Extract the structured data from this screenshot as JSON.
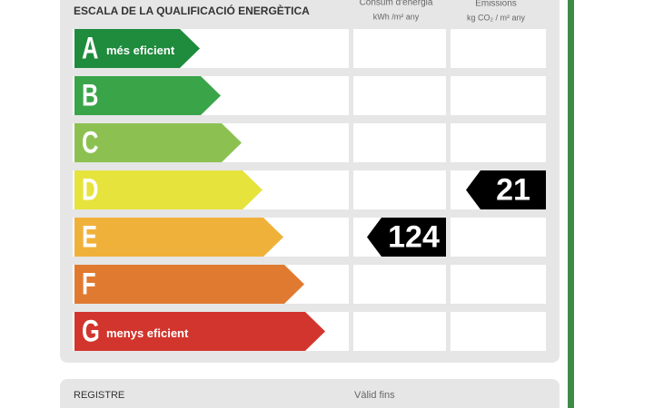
{
  "header": {
    "title": "ESCALA DE LA QUALIFICACIÓ ENERGÈTICA",
    "columns": [
      {
        "title": "Consum d'energia",
        "unit": "kWh /m² any"
      },
      {
        "title": "Emissions",
        "unit": "kg CO₂ / m² any"
      }
    ]
  },
  "scale": {
    "rows": [
      {
        "letter": "A",
        "label": "més eficient",
        "color": "#1f8b3d"
      },
      {
        "letter": "B",
        "color": "#3aa449"
      },
      {
        "letter": "C",
        "color": "#8cc152"
      },
      {
        "letter": "D",
        "color": "#e6e33d"
      },
      {
        "letter": "E",
        "color": "#f0b13b"
      },
      {
        "letter": "F",
        "color": "#e07a31"
      },
      {
        "letter": "G",
        "label": "menys eficient",
        "color": "#d2352d"
      }
    ]
  },
  "ratings": [
    {
      "value": 124,
      "class": "E"
    },
    {
      "value": 21,
      "class": "D"
    }
  ],
  "footer": {
    "register": "REGISTRE",
    "valid": "Vàlid fins"
  }
}
